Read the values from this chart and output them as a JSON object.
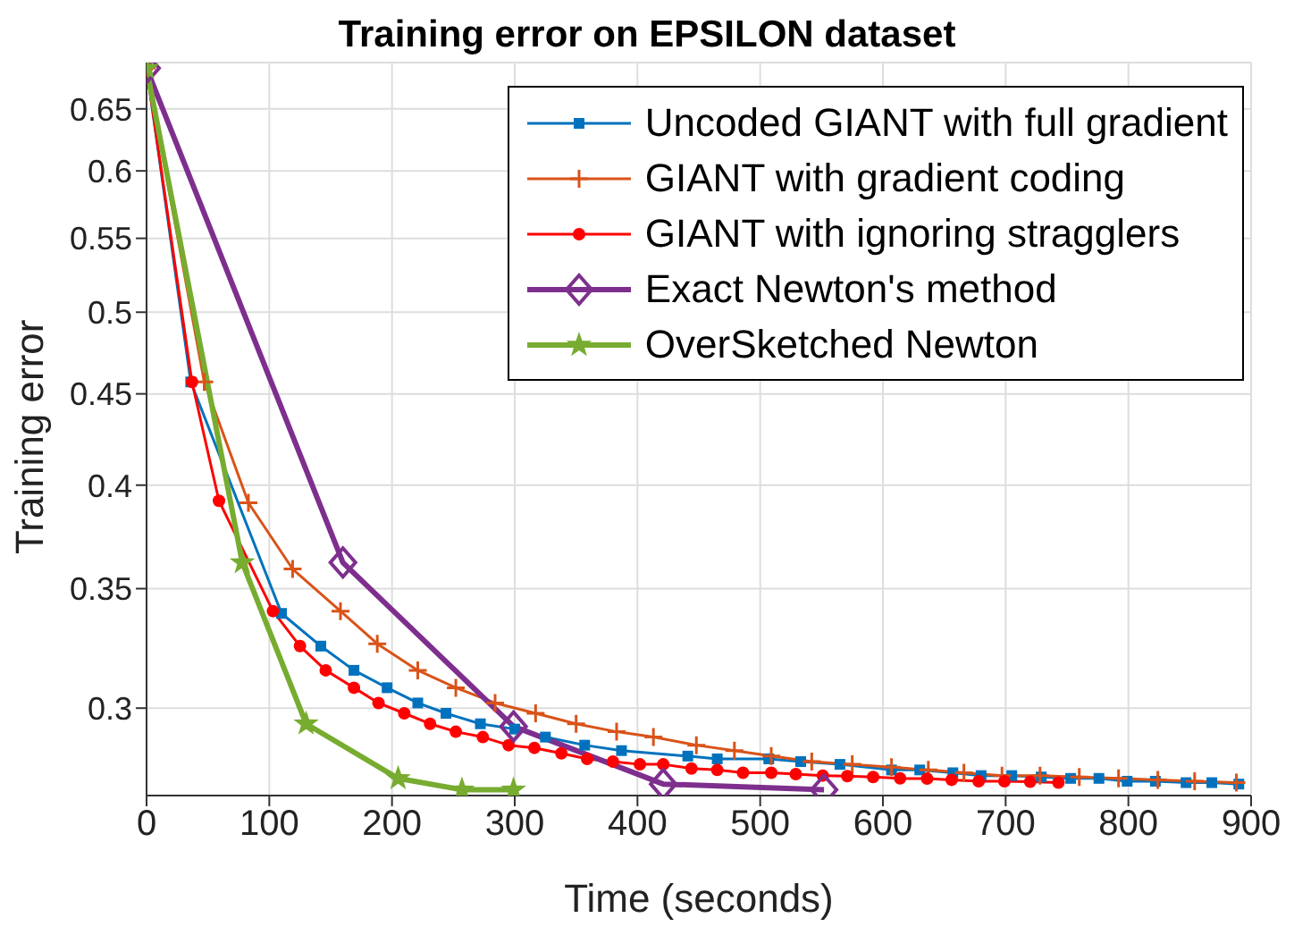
{
  "chart_data": {
    "type": "line",
    "title": "Training error on EPSILON dataset",
    "xlabel": "Time (seconds)",
    "ylabel": "Training error",
    "log": "y",
    "grid": true,
    "legend": "top right",
    "xlim": [
      0,
      900
    ],
    "xticks": [
      0,
      100,
      200,
      300,
      400,
      500,
      600,
      700,
      800,
      900
    ],
    "ylim": [
      0.268,
      0.69
    ],
    "yticks": [
      0.3,
      0.35,
      0.4,
      0.45,
      0.5,
      0.55,
      0.6,
      0.65
    ],
    "series": [
      {
        "name": "Uncoded GIANT with full gradient",
        "color": "#0072bd",
        "marker": "square",
        "x": [
          0,
          36,
          110,
          142,
          169,
          196,
          221,
          244,
          272,
          300,
          325,
          357,
          387,
          441,
          465,
          507,
          533,
          565,
          607,
          630,
          657,
          680,
          705,
          729,
          753,
          776,
          799,
          822,
          847,
          868,
          890
        ],
        "values": [
          0.685,
          0.457,
          0.339,
          0.325,
          0.315,
          0.308,
          0.302,
          0.298,
          0.294,
          0.292,
          0.289,
          0.286,
          0.284,
          0.282,
          0.281,
          0.281,
          0.28,
          0.279,
          0.277,
          0.277,
          0.276,
          0.275,
          0.275,
          0.2745,
          0.274,
          0.274,
          0.273,
          0.273,
          0.2725,
          0.2725,
          0.272
        ]
      },
      {
        "name": "GIANT with gradient coding",
        "color": "#d95319",
        "marker": "cross",
        "x": [
          0,
          47,
          83,
          119,
          158,
          188,
          221,
          252,
          284,
          317,
          350,
          383,
          413,
          448,
          479,
          509,
          542,
          575,
          607,
          637,
          666,
          697,
          728,
          760,
          792,
          824,
          854,
          888
        ],
        "values": [
          0.685,
          0.457,
          0.391,
          0.359,
          0.34,
          0.326,
          0.315,
          0.308,
          0.302,
          0.298,
          0.294,
          0.291,
          0.289,
          0.286,
          0.284,
          0.282,
          0.28,
          0.279,
          0.278,
          0.277,
          0.276,
          0.275,
          0.275,
          0.2745,
          0.274,
          0.2735,
          0.273,
          0.2725
        ]
      },
      {
        "name": "GIANT with ignoring stragglers",
        "color": "#ff0000",
        "marker": "circle",
        "x": [
          0,
          37,
          59,
          103,
          125,
          146,
          169,
          189,
          210,
          231,
          252,
          274,
          295,
          316,
          338,
          359,
          380,
          402,
          421,
          444,
          465,
          486,
          509,
          529,
          551,
          571,
          592,
          614,
          636,
          656,
          678,
          699,
          720,
          743
        ],
        "values": [
          0.685,
          0.457,
          0.392,
          0.34,
          0.325,
          0.315,
          0.308,
          0.302,
          0.298,
          0.294,
          0.291,
          0.289,
          0.286,
          0.285,
          0.283,
          0.281,
          0.28,
          0.279,
          0.279,
          0.2775,
          0.277,
          0.276,
          0.276,
          0.2755,
          0.275,
          0.2748,
          0.2745,
          0.274,
          0.2739,
          0.2735,
          0.273,
          0.273,
          0.2728,
          0.2725
        ]
      },
      {
        "name": "Exact Newton's method",
        "color": "#7e2f8e",
        "marker": "diamond",
        "x": [
          0,
          160,
          299,
          421,
          552
        ],
        "values": [
          0.685,
          0.362,
          0.293,
          0.272,
          0.27
        ]
      },
      {
        "name": "OverSketched Newton",
        "color": "#77ac30",
        "marker": "star",
        "x": [
          0,
          78,
          130,
          205,
          257,
          299
        ],
        "values": [
          0.685,
          0.362,
          0.294,
          0.274,
          0.27,
          0.27
        ]
      }
    ]
  }
}
